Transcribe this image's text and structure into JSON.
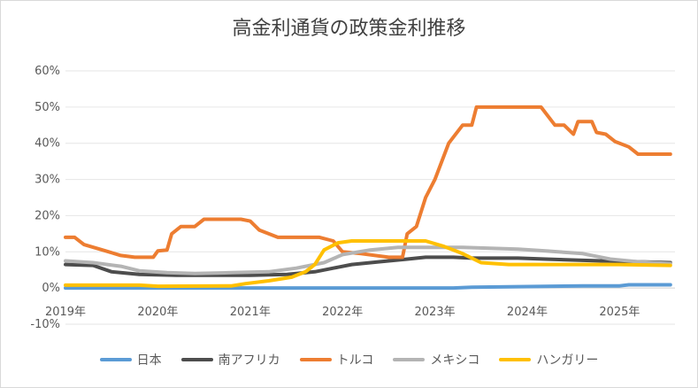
{
  "chart_data": {
    "type": "line",
    "title": "高金利通貨の政策金利推移",
    "xlabel": "",
    "ylabel": "",
    "x_ticks": [
      "2019年",
      "2020年",
      "2021年",
      "2022年",
      "2023年",
      "2024年",
      "2025年"
    ],
    "x_range": [
      2019.0,
      2025.6
    ],
    "y_ticks": [
      "-10%",
      "0%",
      "10%",
      "20%",
      "30%",
      "40%",
      "50%",
      "60%"
    ],
    "ylim": [
      -10,
      60
    ],
    "grid": true,
    "legend_position": "bottom",
    "series": [
      {
        "name": "日本",
        "color": "#5B9BD5",
        "points": [
          [
            2019.0,
            0
          ],
          [
            2023.2,
            0
          ],
          [
            2023.4,
            0.2
          ],
          [
            2024.0,
            0.4
          ],
          [
            2024.6,
            0.6
          ],
          [
            2025.0,
            0.6
          ],
          [
            2025.1,
            0.9
          ],
          [
            2025.55,
            0.9
          ]
        ]
      },
      {
        "name": "南アフリカ",
        "color": "#4D4D4D",
        "points": [
          [
            2019.0,
            6.5
          ],
          [
            2019.3,
            6.25
          ],
          [
            2019.5,
            4.5
          ],
          [
            2019.8,
            3.75
          ],
          [
            2020.2,
            3.5
          ],
          [
            2021.0,
            3.5
          ],
          [
            2021.4,
            3.75
          ],
          [
            2021.7,
            4.5
          ],
          [
            2021.9,
            5.5
          ],
          [
            2022.1,
            6.5
          ],
          [
            2022.4,
            7.25
          ],
          [
            2022.7,
            8.0
          ],
          [
            2022.9,
            8.5
          ],
          [
            2023.2,
            8.5
          ],
          [
            2023.4,
            8.25
          ],
          [
            2023.9,
            8.25
          ],
          [
            2024.2,
            8.0
          ],
          [
            2024.8,
            7.5
          ],
          [
            2025.2,
            7.25
          ],
          [
            2025.55,
            7.0
          ]
        ]
      },
      {
        "name": "トルコ",
        "color": "#ED7D31",
        "points": [
          [
            2019.0,
            14
          ],
          [
            2019.1,
            14
          ],
          [
            2019.2,
            12
          ],
          [
            2019.4,
            10.5
          ],
          [
            2019.6,
            9
          ],
          [
            2019.75,
            8.5
          ],
          [
            2019.95,
            8.5
          ],
          [
            2020.0,
            10.25
          ],
          [
            2020.1,
            10.5
          ],
          [
            2020.15,
            15
          ],
          [
            2020.25,
            17
          ],
          [
            2020.4,
            17
          ],
          [
            2020.5,
            19
          ],
          [
            2020.9,
            19
          ],
          [
            2021.0,
            18.5
          ],
          [
            2021.1,
            16
          ],
          [
            2021.3,
            14
          ],
          [
            2021.75,
            14
          ],
          [
            2021.9,
            13
          ],
          [
            2022.0,
            10
          ],
          [
            2022.2,
            9.5
          ],
          [
            2022.5,
            8.5
          ],
          [
            2022.65,
            8.5
          ],
          [
            2022.7,
            15
          ],
          [
            2022.8,
            17
          ],
          [
            2022.9,
            25
          ],
          [
            2023.0,
            30
          ],
          [
            2023.15,
            40
          ],
          [
            2023.3,
            45
          ],
          [
            2023.4,
            45
          ],
          [
            2023.45,
            50
          ],
          [
            2023.6,
            50
          ],
          [
            2024.15,
            50
          ],
          [
            2024.3,
            45
          ],
          [
            2024.4,
            45
          ],
          [
            2024.5,
            42.5
          ],
          [
            2024.55,
            46
          ],
          [
            2024.7,
            46
          ],
          [
            2024.75,
            43
          ],
          [
            2024.85,
            42.5
          ],
          [
            2024.95,
            40.5
          ],
          [
            2025.0,
            40
          ],
          [
            2025.1,
            39
          ],
          [
            2025.2,
            37
          ],
          [
            2025.55,
            37
          ]
        ]
      },
      {
        "name": "メキシコ",
        "color": "#B4B4B4",
        "points": [
          [
            2019.0,
            7.5
          ],
          [
            2019.3,
            7.0
          ],
          [
            2019.6,
            6
          ],
          [
            2019.8,
            4.75
          ],
          [
            2020.1,
            4.25
          ],
          [
            2020.4,
            4.0
          ],
          [
            2020.8,
            4.25
          ],
          [
            2021.2,
            4.5
          ],
          [
            2021.5,
            5.5
          ],
          [
            2021.8,
            7.0
          ],
          [
            2022.0,
            9.25
          ],
          [
            2022.3,
            10.5
          ],
          [
            2022.6,
            11.25
          ],
          [
            2022.8,
            11.25
          ],
          [
            2023.3,
            11.25
          ],
          [
            2023.6,
            11.0
          ],
          [
            2023.9,
            10.75
          ],
          [
            2024.2,
            10.25
          ],
          [
            2024.6,
            9.5
          ],
          [
            2024.9,
            8.0
          ],
          [
            2025.2,
            7.25
          ],
          [
            2025.55,
            6.75
          ]
        ]
      },
      {
        "name": "ハンガリー",
        "color": "#FFC000",
        "points": [
          [
            2019.0,
            0.8
          ],
          [
            2019.8,
            0.8
          ],
          [
            2020.0,
            0.5
          ],
          [
            2020.8,
            0.6
          ],
          [
            2020.95,
            1.2
          ],
          [
            2021.2,
            2.0
          ],
          [
            2021.45,
            3.0
          ],
          [
            2021.6,
            4.5
          ],
          [
            2021.7,
            6.5
          ],
          [
            2021.8,
            10.5
          ],
          [
            2021.95,
            12.5
          ],
          [
            2022.1,
            13.0
          ],
          [
            2022.9,
            13.0
          ],
          [
            2023.1,
            11.5
          ],
          [
            2023.3,
            9.5
          ],
          [
            2023.5,
            7.0
          ],
          [
            2023.8,
            6.5
          ],
          [
            2024.2,
            6.5
          ],
          [
            2025.0,
            6.5
          ],
          [
            2025.55,
            6.25
          ]
        ]
      }
    ]
  }
}
